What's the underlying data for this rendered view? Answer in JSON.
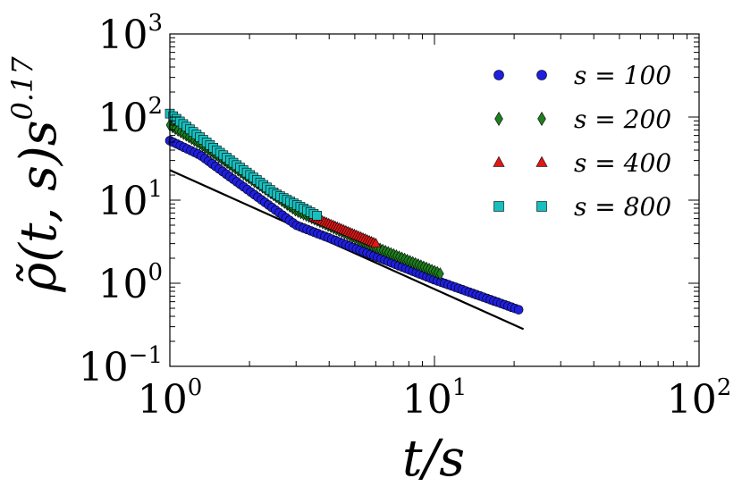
{
  "chart_data": {
    "type": "scatter",
    "x_scale": "log",
    "y_scale": "log",
    "xlim": [
      1,
      100
    ],
    "ylim": [
      0.1,
      1000
    ],
    "xlabel": "t/s",
    "ylabel": "ρ̃(t, s)s^0.17",
    "ylabel_base": "ρ̃(t, s)s",
    "ylabel_exp": "0.17",
    "x_ticks": [
      {
        "base": "10",
        "exp": "0"
      },
      {
        "base": "10",
        "exp": "1"
      },
      {
        "base": "10",
        "exp": "2"
      }
    ],
    "y_ticks": [
      {
        "base": "10",
        "exp": "−1"
      },
      {
        "base": "10",
        "exp": "0"
      },
      {
        "base": "10",
        "exp": "1"
      },
      {
        "base": "10",
        "exp": "2"
      },
      {
        "base": "10",
        "exp": "3"
      }
    ],
    "legend_position": "top-right",
    "series": [
      {
        "name": "s = 100",
        "marker": "circle",
        "color": "#1f1fe0",
        "x_range": [
          1.0,
          20.8
        ],
        "n_points": 100,
        "anchor_x": [
          1.0,
          1.3,
          3.0,
          4.0,
          10.0,
          20.8
        ],
        "anchor_y": [
          52,
          35,
          5.0,
          3.5,
          1.1,
          0.48
        ]
      },
      {
        "name": "s = 200",
        "marker": "diamond",
        "color": "#1e7f1e",
        "x_range": [
          1.0,
          10.5
        ],
        "n_points": 100,
        "anchor_x": [
          1.0,
          1.3,
          3.0,
          6.0,
          10.5
        ],
        "anchor_y": [
          80,
          48,
          7.5,
          2.7,
          1.3
        ]
      },
      {
        "name": "s = 400",
        "marker": "triangle",
        "color": "#e01818",
        "x_range": [
          3.5,
          6.0
        ],
        "n_points": 30,
        "anchor_x": [
          3.5,
          6.0
        ],
        "anchor_y": [
          6.2,
          3.0
        ]
      },
      {
        "name": "s = 800",
        "marker": "square",
        "color": "#19bfbf",
        "x_range": [
          1.0,
          3.6
        ],
        "n_points": 45,
        "anchor_x": [
          1.0,
          1.5,
          2.5,
          3.6
        ],
        "anchor_y": [
          110,
          40,
          12,
          6.5
        ]
      }
    ],
    "reference_line": {
      "x": [
        1,
        21.7
      ],
      "y": [
        23,
        0.28
      ],
      "color": "#000000"
    }
  }
}
